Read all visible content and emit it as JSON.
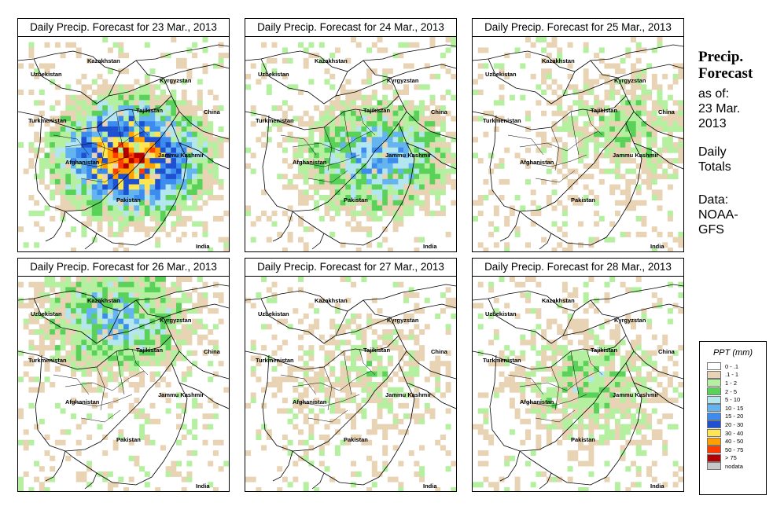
{
  "panels": [
    {
      "title": "Daily Precip. Forecast for  23 Mar., 2013",
      "intensity": 1.0,
      "center": [
        0.52,
        0.55
      ]
    },
    {
      "title": "Daily Precip. Forecast for  24 Mar., 2013",
      "intensity": 0.55,
      "center": [
        0.62,
        0.55
      ]
    },
    {
      "title": "Daily Precip. Forecast for  25 Mar., 2013",
      "intensity": 0.25,
      "center": [
        0.72,
        0.42
      ]
    },
    {
      "title": "Daily Precip. Forecast for  26 Mar., 2013",
      "intensity": 0.5,
      "center": [
        0.45,
        0.18
      ]
    },
    {
      "title": "Daily Precip. Forecast for  27 Mar., 2013",
      "intensity": 0.2,
      "center": [
        0.55,
        0.45
      ]
    },
    {
      "title": "Daily Precip. Forecast for  28 Mar., 2013",
      "intensity": 0.3,
      "center": [
        0.55,
        0.5
      ]
    }
  ],
  "map_labels": {
    "uzbekistan": "Uzbekistan",
    "kazakhstan": "Kazakhstan",
    "kyrgyzstan": "Kyrgyzstan",
    "tajikistan": "Tajikistan",
    "china": "China",
    "turkmenistan": "Turkmenistan",
    "afghanistan": "Afghanistan",
    "jammu_kashmir": "Jammu Kashmir",
    "pakistan": "Pakistan",
    "india": "India"
  },
  "side": {
    "title_line1": "Precip.",
    "title_line2": "Forecast",
    "asof_line1": "as of:",
    "asof_line2": "23 Mar.",
    "asof_line3": "2013",
    "daily_line1": "Daily",
    "daily_line2": "Totals",
    "data_line1": "Data:",
    "data_line2": "NOAA-",
    "data_line3": "GFS"
  },
  "legend": {
    "title": "PPT (mm)",
    "items": [
      {
        "label": "0 - .1",
        "color": "#ffffff"
      },
      {
        "label": ".1 - 1",
        "color": "#e8d4b4"
      },
      {
        "label": "1 - 2",
        "color": "#b4f0a0"
      },
      {
        "label": "2 - 5",
        "color": "#5ad25a"
      },
      {
        "label": "5 - 10",
        "color": "#b4e6f0"
      },
      {
        "label": "10 - 15",
        "color": "#64b4f0"
      },
      {
        "label": "15 - 20",
        "color": "#3c8cf0"
      },
      {
        "label": "20 - 30",
        "color": "#1e50d2"
      },
      {
        "label": "30 - 40",
        "color": "#ffe650"
      },
      {
        "label": "40 - 50",
        "color": "#ffa000"
      },
      {
        "label": "50 - 75",
        "color": "#ff3c00"
      },
      {
        "label": "> 75",
        "color": "#b40000"
      },
      {
        "label": "nodata",
        "color": "#c8c8c8"
      }
    ]
  }
}
